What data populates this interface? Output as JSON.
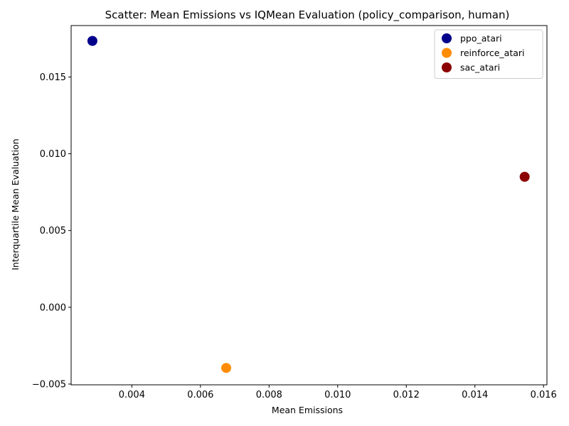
{
  "chart_data": {
    "type": "scatter",
    "title": "Scatter: Mean Emissions vs IQMean Evaluation (policy_comparison, human)",
    "xlabel": "Mean Emissions",
    "ylabel": "Interquartile Mean Evaluation",
    "xlim": [
      0.00223,
      0.0161
    ],
    "ylim": [
      -0.00505,
      0.01835
    ],
    "xticks": [
      0.004,
      0.006,
      0.008,
      0.01,
      0.012,
      0.014,
      0.016
    ],
    "xtick_labels": [
      "0.004",
      "0.006",
      "0.008",
      "0.010",
      "0.012",
      "0.014",
      "0.016"
    ],
    "yticks": [
      -0.005,
      0.0,
      0.005,
      0.01,
      0.015
    ],
    "ytick_labels": [
      "−0.005",
      "0.000",
      "0.005",
      "0.010",
      "0.015"
    ],
    "grid": false,
    "legend_position": "top-right",
    "series": [
      {
        "name": "ppo_atari",
        "color": "#00008b",
        "x": [
          0.00285
        ],
        "y": [
          0.01735
        ]
      },
      {
        "name": "reinforce_atari",
        "color": "#ff8c00",
        "x": [
          0.00675
        ],
        "y": [
          -0.00395
        ]
      },
      {
        "name": "sac_atari",
        "color": "#8b0000",
        "x": [
          0.01545
        ],
        "y": [
          0.0085
        ]
      }
    ]
  }
}
